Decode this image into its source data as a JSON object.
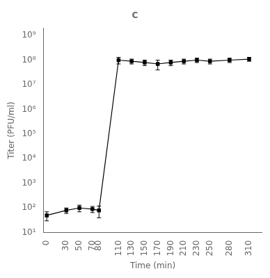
{
  "chart_data": {
    "type": "line",
    "title": "C",
    "x": [
      0,
      30,
      50,
      70,
      80,
      110,
      130,
      150,
      170,
      190,
      210,
      230,
      250,
      280,
      310
    ],
    "values": [
      50,
      80,
      100,
      90,
      80,
      100000000.0,
      90000000.0,
      80000000.0,
      70000000.0,
      80000000.0,
      90000000.0,
      100000000.0,
      90000000.0,
      100000000.0,
      110000000.0
    ],
    "errors": [
      20,
      20,
      30,
      25,
      40,
      30000000.0,
      20000000.0,
      20000000.0,
      30000000.0,
      20000000.0,
      20000000.0,
      20000000.0,
      20000000.0,
      20000000.0,
      20000000.0
    ],
    "xlabel": "Time (min)",
    "ylabel": "Titer (PFU/ml)",
    "xlim": [
      -5,
      330
    ],
    "ylim": [
      10,
      2000000000.0
    ],
    "xticks": [
      0,
      30,
      50,
      70,
      80,
      110,
      130,
      150,
      170,
      190,
      210,
      230,
      250,
      280,
      310
    ],
    "yticks": [
      {
        "value": 10,
        "label": "10¹"
      },
      {
        "value": 100,
        "label": "10²"
      },
      {
        "value": 1000,
        "label": "10³"
      },
      {
        "value": 10000,
        "label": "10⁴"
      },
      {
        "value": 100000,
        "label": "10⁵"
      },
      {
        "value": 1000000,
        "label": "10⁶"
      },
      {
        "value": 10000000,
        "label": "10⁷"
      },
      {
        "value": 100000000,
        "label": "10⁸"
      },
      {
        "value": 1000000000,
        "label": "10⁹"
      }
    ],
    "log": "y",
    "grid": false,
    "color": "#000000",
    "marker": "square",
    "line_style": "solid"
  }
}
